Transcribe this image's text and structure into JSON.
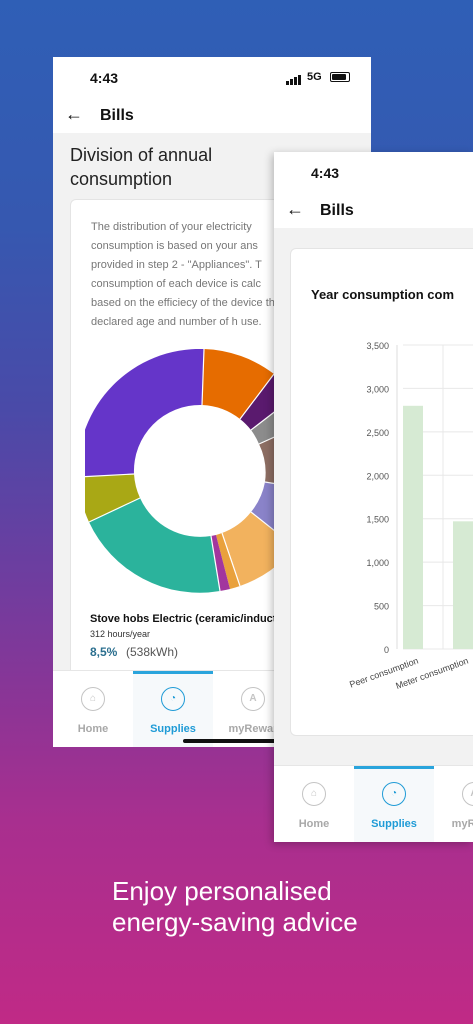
{
  "phone1": {
    "status": {
      "time": "4:43",
      "network": "5G"
    },
    "header": {
      "back_icon": "arrow-left-icon",
      "title": "Bills"
    },
    "section_title": "Division of annual consumption",
    "description": "The distribution of your electricity consumption is based on your ans provided in step 2 - \"Appliances\". T consumption of each device is calc based on the efficiecy of the device the declared age and number of h use.",
    "donut_colors": {
      "purple": "#6535c9",
      "orange": "#e66c00",
      "darkpurple": "#5a1a6e",
      "olive": "#a9a815",
      "teal": "#2bb39c",
      "magenta": "#a2369e",
      "peach": "#f2b25e",
      "lavender": "#8a83c9",
      "brown": "#8d6e63",
      "gray": "#8c8c8c"
    },
    "device": {
      "name": "Stove hobs Electric (ceramic/inductio",
      "usage": "312 hours/year",
      "percent": "8,5%",
      "kwh": "(538kWh)"
    },
    "nav": [
      {
        "label": "Home",
        "icon": "home-icon"
      },
      {
        "label": "Supplies",
        "icon": "gauge-icon"
      },
      {
        "label": "myRewar",
        "icon": "rewards-icon"
      }
    ]
  },
  "phone2": {
    "status": {
      "time": "4:43"
    },
    "header": {
      "back_icon": "arrow-left-icon",
      "title": "Bills"
    },
    "chart_title": "Year consumption com",
    "nav": [
      {
        "label": "Home",
        "icon": "home-icon"
      },
      {
        "label": "Supplies",
        "icon": "gauge-icon"
      },
      {
        "label": "myRewa",
        "icon": "rewards-icon"
      }
    ]
  },
  "chart_data": {
    "type": "bar",
    "title": "Year consumption com",
    "categories": [
      "Peer consumption",
      "Meter consumption"
    ],
    "values": [
      2800,
      1470
    ],
    "ylim": [
      0,
      3500
    ],
    "yticks": [
      "3,500",
      "3,000",
      "2,500",
      "2,000",
      "1,500",
      "1,000",
      "500",
      "0"
    ],
    "grid": true,
    "bar_color": "#d6ead3"
  },
  "caption": {
    "line1": "Enjoy personalised",
    "line2": "energy-saving advice"
  }
}
